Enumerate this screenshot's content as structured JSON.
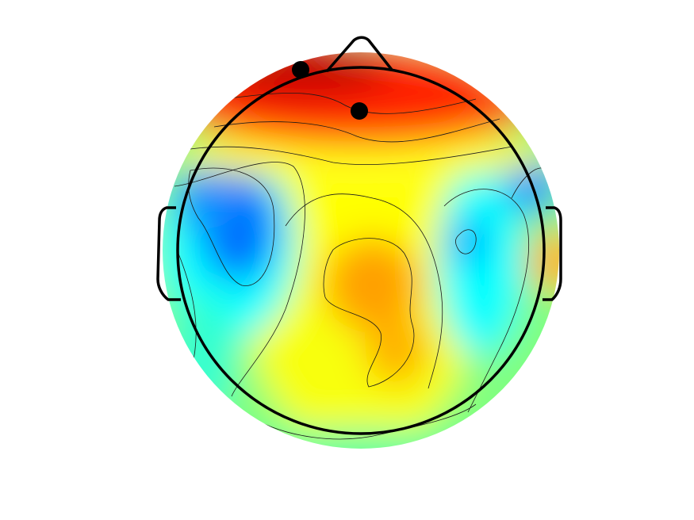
{
  "figure": {
    "type": "scalp-topography-map",
    "colormap": "jet",
    "colors": {
      "strong_positive": "#c40000",
      "positive": "#ff2800",
      "mid_high": "#ffa000",
      "neutral": "#ffff00",
      "mid_low": "#00ffff",
      "negative": "#0060ff",
      "contour_line": "#1a1a1a",
      "head_outline": "#000000"
    },
    "head": {
      "parts": [
        "head-outline",
        "nose",
        "left-ear",
        "right-ear"
      ]
    },
    "highlighted_electrodes": [
      {
        "name": "frontal-left-electrode"
      },
      {
        "name": "frontal-midline-electrode"
      }
    ],
    "contours": {
      "shown": true,
      "count": 9
    }
  }
}
